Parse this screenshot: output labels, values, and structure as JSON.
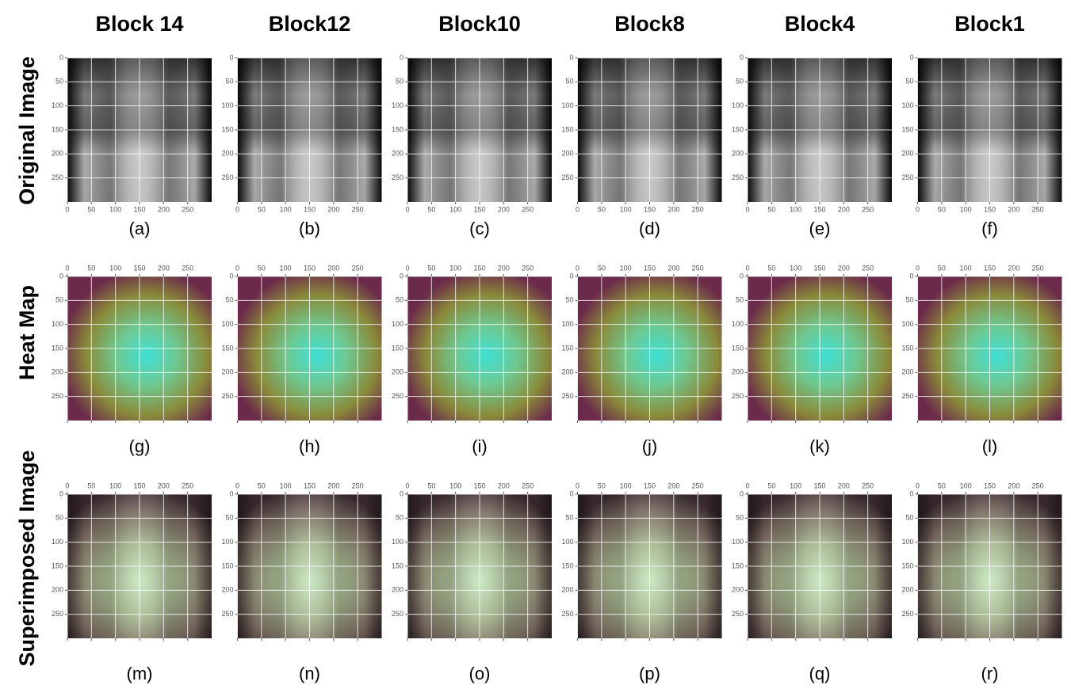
{
  "columns": [
    "Block 14",
    "Block12",
    "Block10",
    "Block8",
    "Block4",
    "Block1"
  ],
  "rows": [
    "Original Image",
    "Heat Map",
    "Superimposed Image"
  ],
  "captions": [
    "(a)",
    "(b)",
    "(c)",
    "(d)",
    "(e)",
    "(f)",
    "(g)",
    "(h)",
    "(i)",
    "(j)",
    "(k)",
    "(l)",
    "(m)",
    "(n)",
    "(o)",
    "(p)",
    "(q)",
    "(r)"
  ],
  "ticks": [
    0,
    50,
    100,
    150,
    200,
    250
  ],
  "axis_range": [
    0,
    300
  ]
}
